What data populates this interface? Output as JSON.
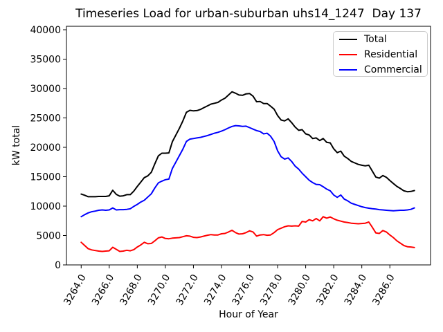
{
  "chart_data": {
    "type": "line",
    "title": "Timeseries Load for urban-suburban uhs14_1247  Day 137",
    "xlabel": "Hour of Year",
    "ylabel": "kW total",
    "grid": false,
    "legend_position": "upper right",
    "background": "#ffffff",
    "xlim": [
      3262.95,
      3288.9
    ],
    "ylim": [
      0,
      40590
    ],
    "xticks": {
      "values": [
        3264,
        3266,
        3268,
        3270,
        3272,
        3274,
        3276,
        3278,
        3280,
        3282,
        3284,
        3286
      ],
      "labels": [
        "3264.0",
        "3266.0",
        "3268.0",
        "3270.0",
        "3272.0",
        "3274.0",
        "3276.0",
        "3278.0",
        "3280.0",
        "3282.0",
        "3284.0",
        "3286.0"
      ]
    },
    "yticks": {
      "values": [
        0,
        5000,
        10000,
        15000,
        20000,
        25000,
        30000,
        35000,
        40000
      ],
      "labels": [
        "0",
        "5000",
        "10000",
        "15000",
        "20000",
        "25000",
        "30000",
        "35000",
        "40000"
      ]
    },
    "x": [
      3264.0,
      3264.25,
      3264.5,
      3264.75,
      3265.0,
      3265.25,
      3265.5,
      3265.75,
      3266.0,
      3266.25,
      3266.5,
      3266.75,
      3267.0,
      3267.25,
      3267.5,
      3267.75,
      3268.0,
      3268.25,
      3268.5,
      3268.75,
      3269.0,
      3269.25,
      3269.5,
      3269.75,
      3270.0,
      3270.25,
      3270.5,
      3270.75,
      3271.0,
      3271.25,
      3271.5,
      3271.75,
      3272.0,
      3272.25,
      3272.5,
      3272.75,
      3273.0,
      3273.25,
      3273.5,
      3273.75,
      3274.0,
      3274.25,
      3274.5,
      3274.75,
      3275.0,
      3275.25,
      3275.5,
      3275.75,
      3276.0,
      3276.25,
      3276.5,
      3276.75,
      3277.0,
      3277.25,
      3277.5,
      3277.75,
      3278.0,
      3278.25,
      3278.5,
      3278.75,
      3279.0,
      3279.25,
      3279.5,
      3279.75,
      3280.0,
      3280.25,
      3280.5,
      3280.75,
      3281.0,
      3281.25,
      3281.5,
      3281.75,
      3282.0,
      3282.25,
      3282.5,
      3282.75,
      3283.0,
      3283.25,
      3283.5,
      3283.75,
      3284.0,
      3284.25,
      3284.5,
      3284.75,
      3285.0,
      3285.25,
      3285.5,
      3285.75,
      3286.0,
      3286.25,
      3286.5,
      3286.75,
      3287.0,
      3287.25,
      3287.5,
      3287.75
    ],
    "series": [
      {
        "name": "Total",
        "color": "#000000",
        "values": [
          12050,
          11850,
          11600,
          11600,
          11600,
          11650,
          11650,
          11650,
          11750,
          12700,
          12000,
          11700,
          11750,
          11950,
          11950,
          12550,
          13350,
          14100,
          14850,
          15150,
          15750,
          17200,
          18550,
          19000,
          19000,
          19050,
          20950,
          22100,
          23250,
          24500,
          25950,
          26300,
          26200,
          26250,
          26450,
          26750,
          27050,
          27350,
          27500,
          27650,
          28050,
          28350,
          28900,
          29450,
          29200,
          28900,
          28850,
          29100,
          29150,
          28700,
          27750,
          27800,
          27450,
          27450,
          27000,
          26500,
          25400,
          24650,
          24500,
          24850,
          24200,
          23450,
          22900,
          23000,
          22300,
          22100,
          21500,
          21600,
          21150,
          21500,
          20850,
          20750,
          19750,
          19100,
          19350,
          18500,
          18100,
          17600,
          17350,
          17100,
          16950,
          16850,
          16950,
          15950,
          14950,
          14750,
          15200,
          14900,
          14350,
          13850,
          13350,
          13000,
          12600,
          12450,
          12500,
          12650
        ]
      },
      {
        "name": "Residential",
        "color": "#ff0000",
        "values": [
          3850,
          3300,
          2750,
          2550,
          2450,
          2350,
          2300,
          2350,
          2400,
          3000,
          2650,
          2300,
          2350,
          2500,
          2400,
          2600,
          3050,
          3400,
          3850,
          3600,
          3650,
          4100,
          4600,
          4750,
          4500,
          4450,
          4550,
          4600,
          4650,
          4800,
          4950,
          4900,
          4700,
          4650,
          4750,
          4900,
          5050,
          5150,
          5100,
          5100,
          5300,
          5350,
          5600,
          5900,
          5500,
          5250,
          5300,
          5500,
          5800,
          5600,
          4900,
          5100,
          5150,
          5050,
          5100,
          5500,
          6000,
          6250,
          6500,
          6650,
          6600,
          6650,
          6600,
          7400,
          7300,
          7700,
          7500,
          7900,
          7500,
          8200,
          7950,
          8150,
          7850,
          7600,
          7450,
          7300,
          7200,
          7100,
          7050,
          7000,
          7050,
          7100,
          7300,
          6400,
          5450,
          5350,
          5850,
          5600,
          5100,
          4650,
          4100,
          3700,
          3300,
          3100,
          3050,
          2950
        ]
      },
      {
        "name": "Commercial",
        "color": "#0000ff",
        "values": [
          8200,
          8550,
          8850,
          9050,
          9150,
          9300,
          9350,
          9300,
          9350,
          9700,
          9350,
          9400,
          9400,
          9450,
          9550,
          9950,
          10300,
          10700,
          11000,
          11550,
          12100,
          13100,
          13950,
          14250,
          14500,
          14600,
          16400,
          17500,
          18600,
          19700,
          21000,
          21400,
          21500,
          21600,
          21700,
          21850,
          22000,
          22200,
          22400,
          22550,
          22750,
          23000,
          23300,
          23550,
          23700,
          23650,
          23550,
          23600,
          23350,
          23100,
          22850,
          22700,
          22300,
          22400,
          21900,
          21000,
          19400,
          18400,
          18000,
          18200,
          17600,
          16800,
          16300,
          15600,
          15000,
          14400,
          14000,
          13700,
          13650,
          13300,
          12900,
          12600,
          11900,
          11500,
          11900,
          11200,
          10900,
          10500,
          10300,
          10100,
          9900,
          9750,
          9650,
          9550,
          9500,
          9400,
          9350,
          9300,
          9250,
          9200,
          9250,
          9300,
          9300,
          9350,
          9450,
          9700
        ]
      }
    ]
  }
}
